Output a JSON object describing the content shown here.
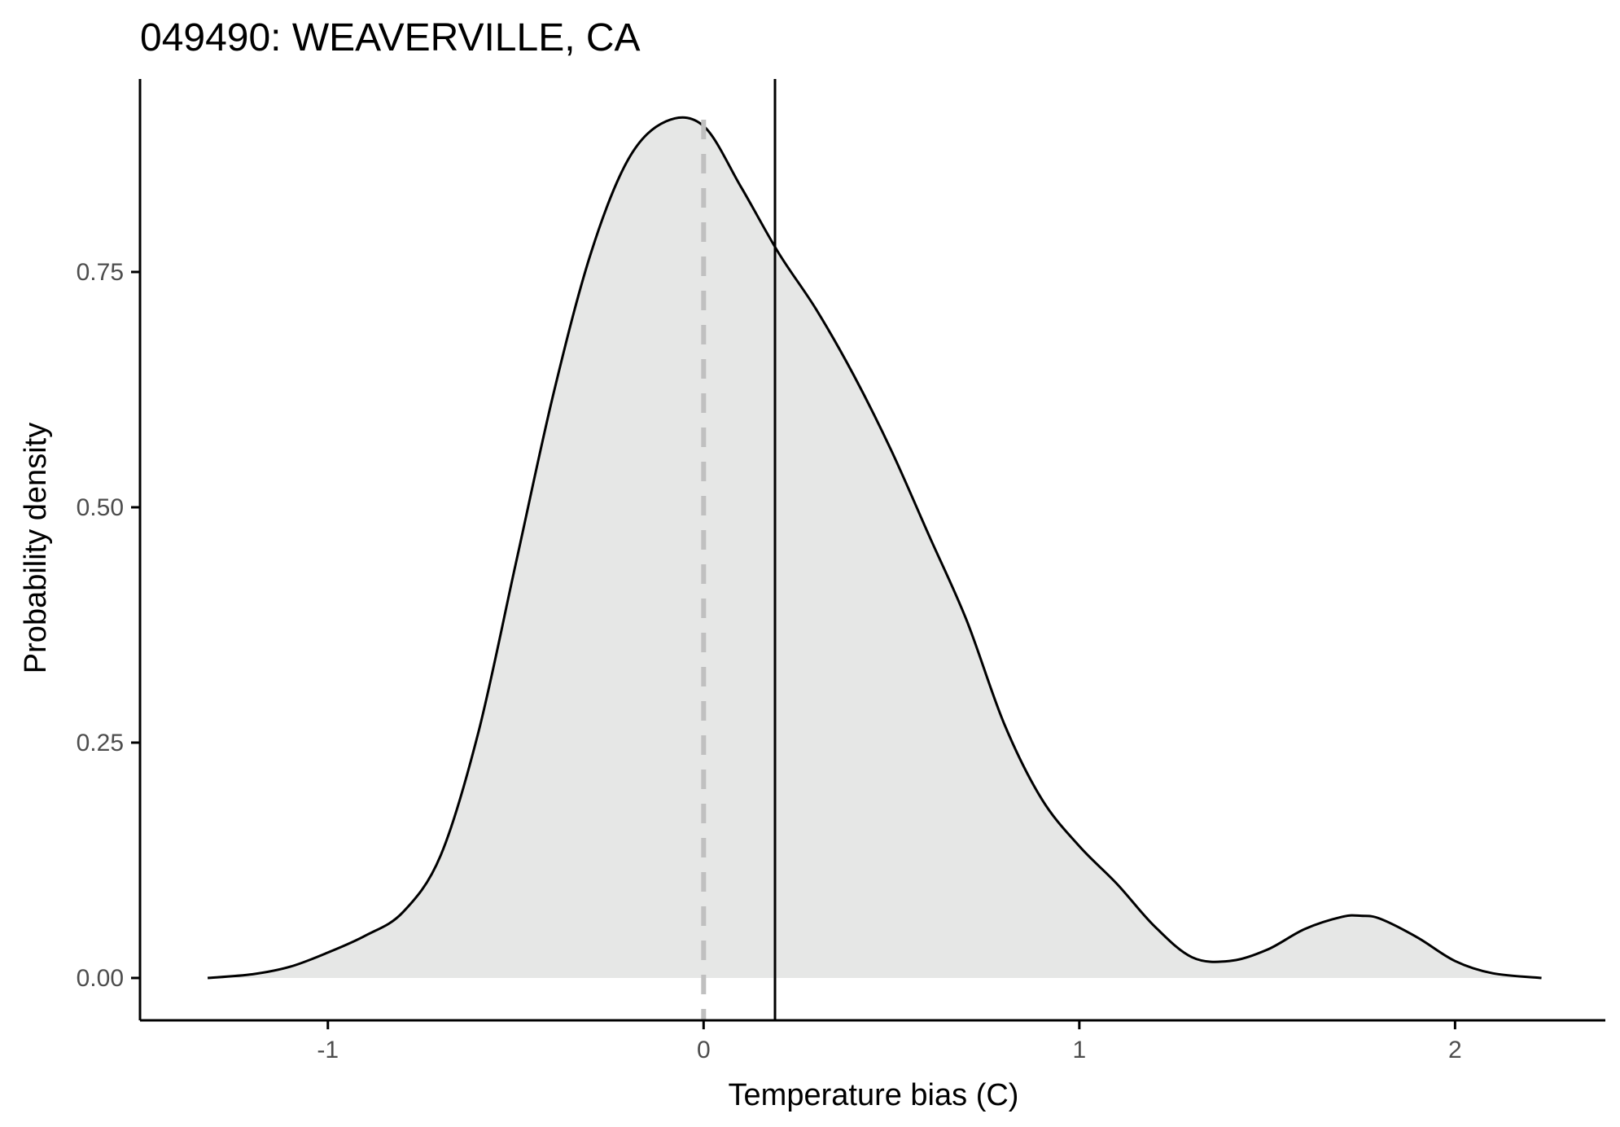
{
  "chart_data": {
    "type": "area",
    "title": "049490: WEAVERVILLE, CA",
    "xlabel": "Temperature bias (C)",
    "ylabel": "Probability density",
    "xlim": [
      -1.5,
      2.4
    ],
    "ylim": [
      -0.045,
      0.955
    ],
    "x_ticks": [
      -1,
      0,
      1,
      2
    ],
    "x_tick_labels": [
      "-1",
      "0",
      "1",
      "2"
    ],
    "y_ticks": [
      0.0,
      0.25,
      0.5,
      0.75
    ],
    "y_tick_labels": [
      "0.00",
      "0.25",
      "0.50",
      "0.75"
    ],
    "grid": false,
    "legend": "none",
    "series": [
      {
        "x": [
          -1.32,
          -1.2,
          -1.1,
          -1.0,
          -0.9,
          -0.8,
          -0.7,
          -0.6,
          -0.5,
          -0.4,
          -0.3,
          -0.2,
          -0.1,
          0.0,
          0.1,
          0.2,
          0.3,
          0.4,
          0.5,
          0.6,
          0.7,
          0.8,
          0.9,
          1.0,
          1.1,
          1.2,
          1.3,
          1.4,
          1.5,
          1.6,
          1.7,
          1.75,
          1.8,
          1.9,
          2.0,
          2.1,
          2.23
        ],
        "y": [
          0.0,
          0.004,
          0.012,
          0.027,
          0.045,
          0.07,
          0.13,
          0.26,
          0.44,
          0.62,
          0.77,
          0.87,
          0.91,
          0.905,
          0.84,
          0.77,
          0.71,
          0.64,
          0.56,
          0.47,
          0.38,
          0.27,
          0.19,
          0.14,
          0.1,
          0.055,
          0.022,
          0.018,
          0.03,
          0.052,
          0.065,
          0.066,
          0.063,
          0.043,
          0.018,
          0.005,
          0.0
        ]
      }
    ],
    "reference_lines": [
      {
        "axis": "x",
        "value": 0.0,
        "style": "dashed"
      },
      {
        "axis": "x",
        "value": 0.19,
        "style": "solid"
      }
    ],
    "colors": {
      "fill": "#e6e7e6",
      "curve": "#000000",
      "dashed_line": "#c0c0c0",
      "mean_line": "#000000",
      "axis": "#000000",
      "tick_label": "#4d4d4d"
    }
  }
}
